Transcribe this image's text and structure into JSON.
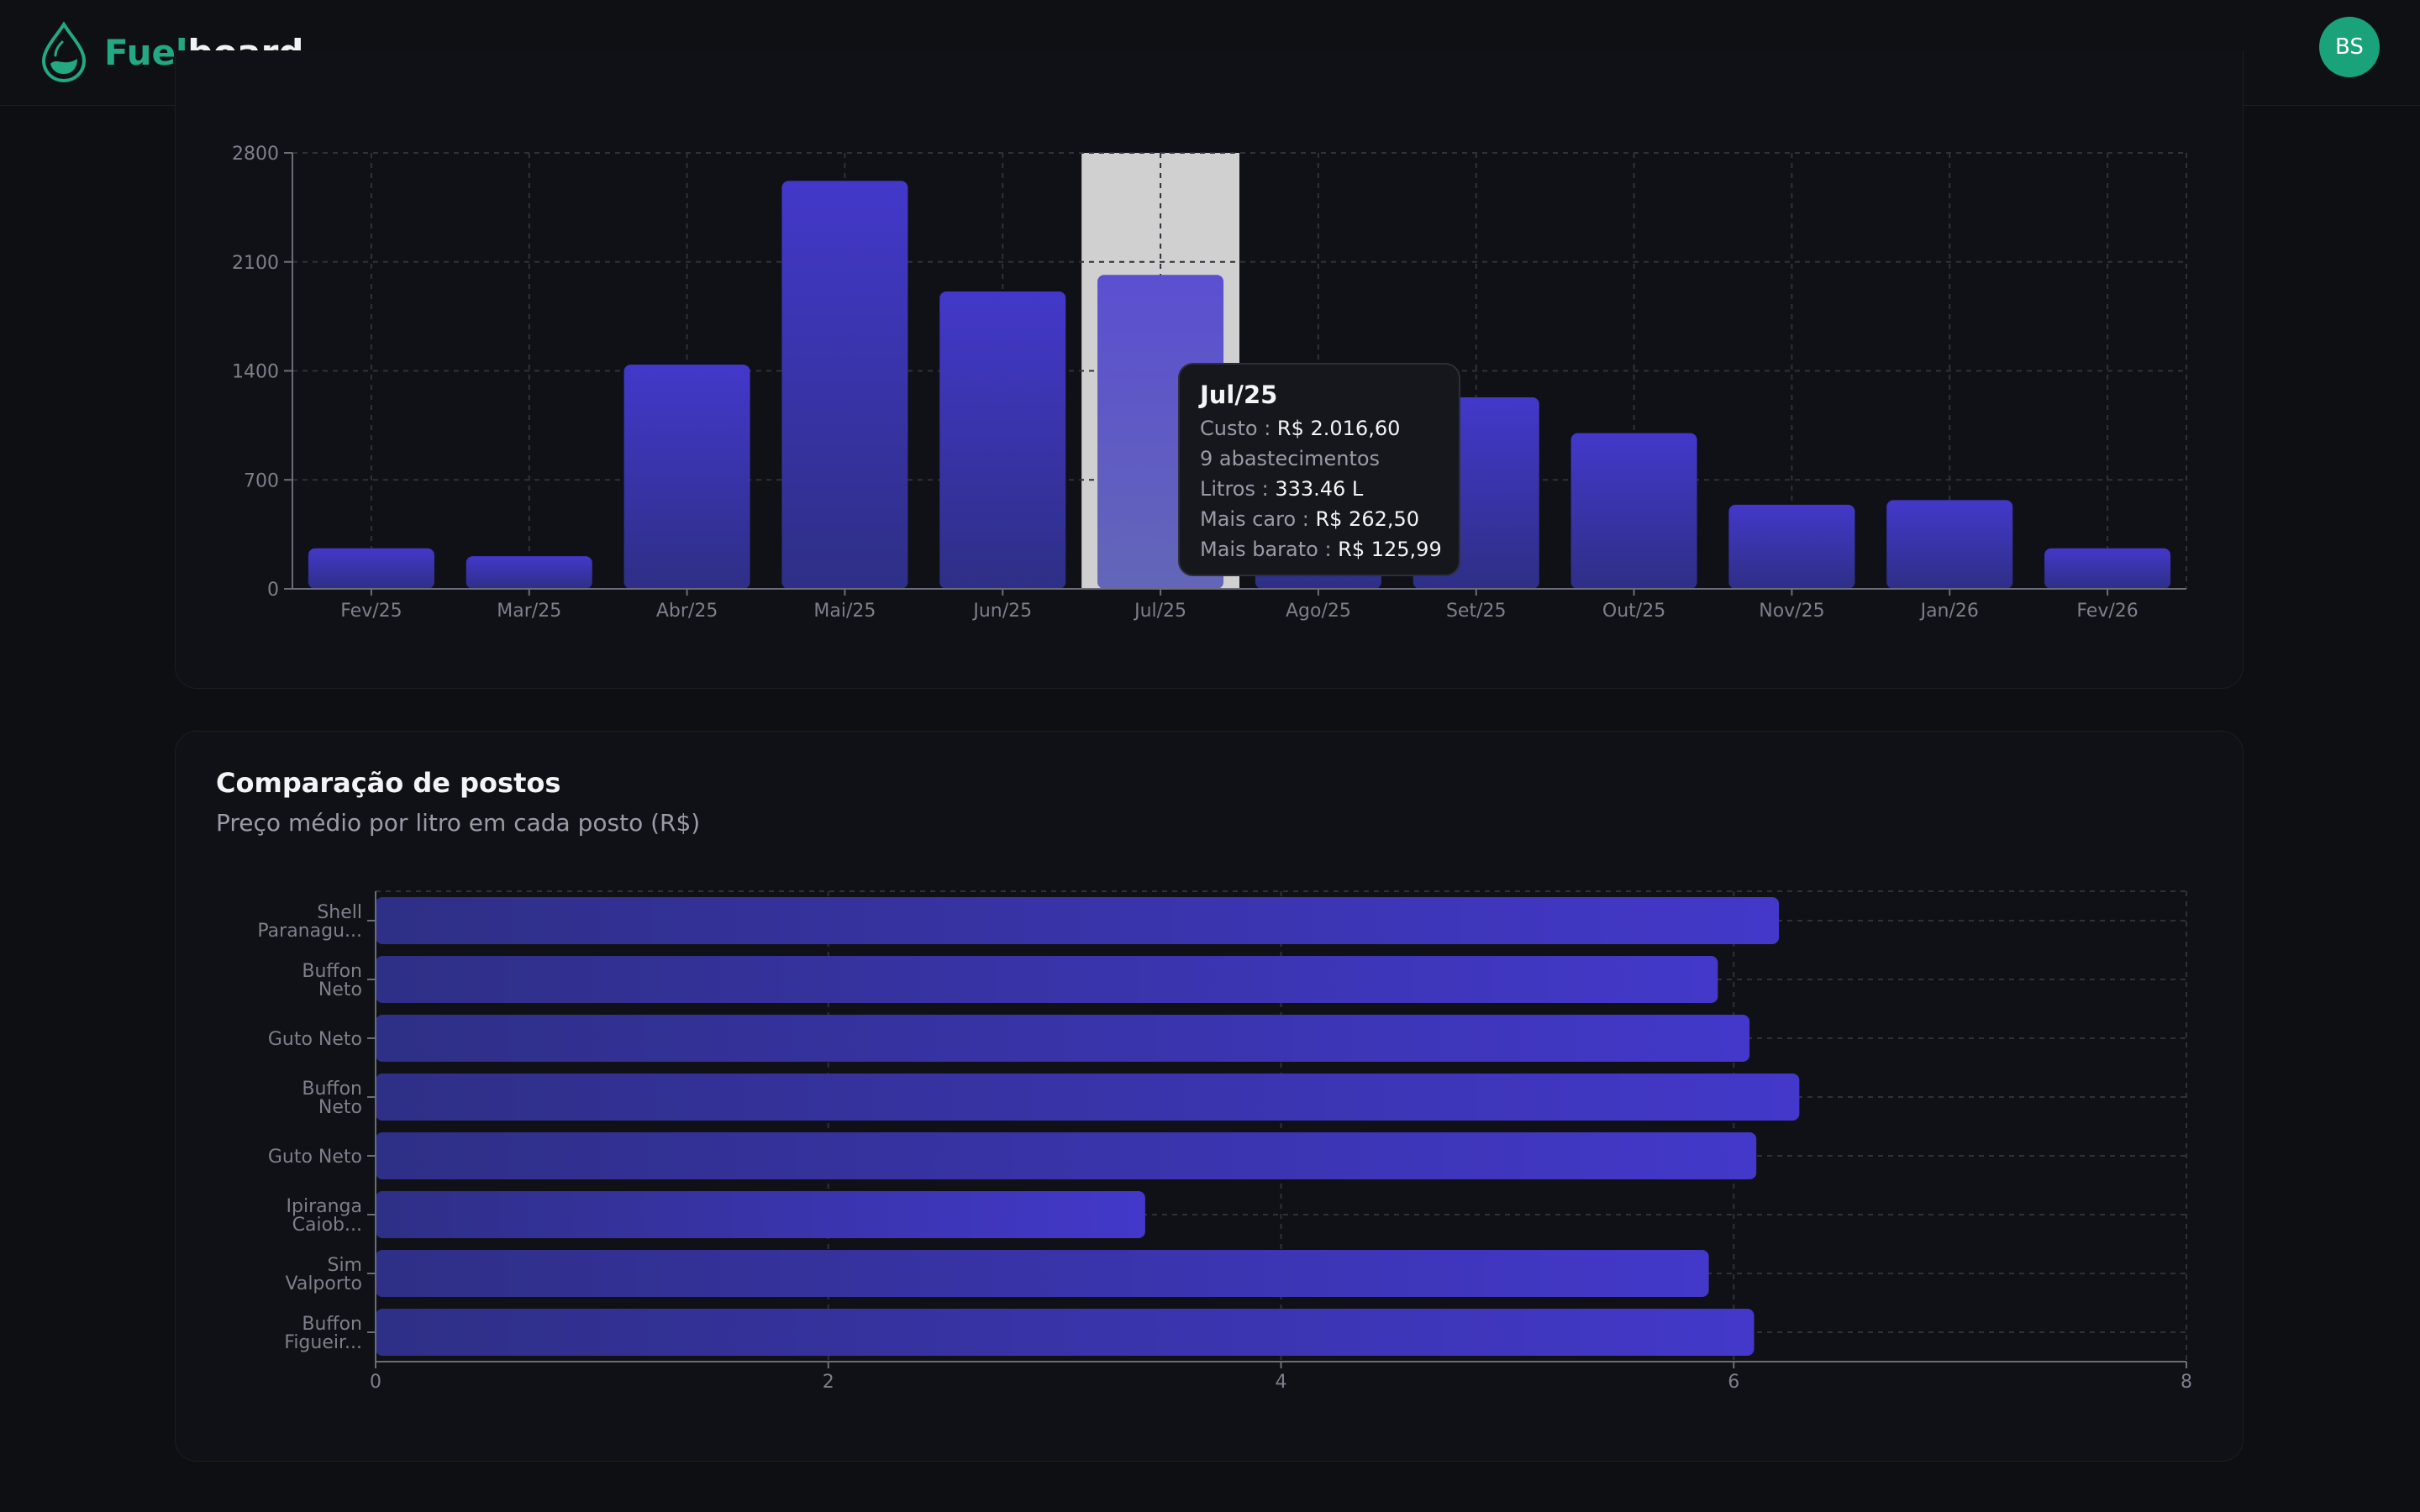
{
  "app": {
    "name_part1": "Fuel",
    "name_part2": "board"
  },
  "user": {
    "initials": "BS"
  },
  "colors": {
    "accent": "#22a883",
    "bar": "#4338ca",
    "bar_highlight": "#5b4fd0",
    "hover_band": "#d0d0d0"
  },
  "monthly_chart": {
    "tooltip": {
      "title": "Jul/25",
      "cost_label": "Custo : ",
      "cost_value": "R$ 2.016,60",
      "fills_text": "9 abastecimentos",
      "liters_label": "Litros : ",
      "liters_value": "333.46 L",
      "max_label": "Mais caro : ",
      "max_value": "R$ 262,50",
      "min_label": "Mais barato : ",
      "min_value": "R$ 125,99"
    }
  },
  "stations_card": {
    "title": "Comparação de postos",
    "subtitle": "Preço médio por litro em cada posto (R$)"
  },
  "chart_data": [
    {
      "type": "bar",
      "orientation": "vertical",
      "categories": [
        "Fev/25",
        "Mar/25",
        "Abr/25",
        "Mai/25",
        "Jun/25",
        "Jul/25",
        "Ago/25",
        "Set/25",
        "Out/25",
        "Nov/25",
        "Jan/26",
        "Fev/26"
      ],
      "values": [
        260,
        210,
        1440,
        2620,
        1910,
        2016.6,
        1150,
        1230,
        1000,
        540,
        570,
        260
      ],
      "ylim": [
        0,
        2800
      ],
      "yticks": [
        0,
        700,
        1400,
        2100,
        2800
      ],
      "highlighted_category": "Jul/25",
      "grid": true
    },
    {
      "type": "bar",
      "orientation": "horizontal",
      "categories": [
        [
          "Shell",
          "Paranagu..."
        ],
        [
          "Buffon",
          "Neto"
        ],
        [
          "Guto Neto"
        ],
        [
          "Buffon",
          "Neto"
        ],
        [
          "Guto Neto"
        ],
        [
          "Ipiranga",
          "Caiob..."
        ],
        [
          "Sim",
          "Valporto"
        ],
        [
          "Buffon",
          "Figueir..."
        ]
      ],
      "values": [
        6.2,
        5.93,
        6.07,
        6.29,
        6.1,
        3.4,
        5.89,
        6.09
      ],
      "xlim": [
        0,
        8
      ],
      "xticks": [
        0,
        2,
        4,
        6,
        8
      ],
      "grid": true
    }
  ]
}
